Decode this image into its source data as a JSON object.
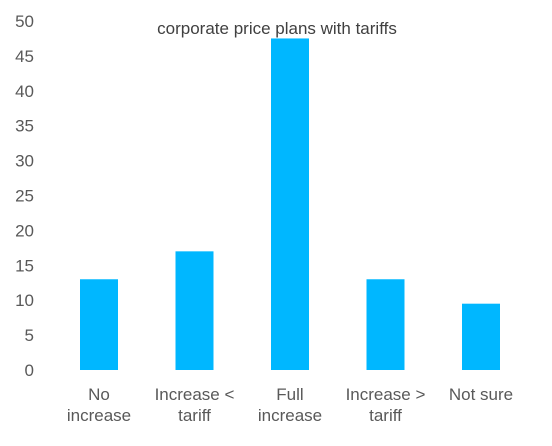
{
  "chart_data": {
    "type": "bar",
    "title": "corporate price plans with tariffs",
    "xlabel": "",
    "ylabel": "",
    "categories": [
      [
        "No",
        "increase"
      ],
      [
        "Increase <",
        "tariff"
      ],
      [
        "Full",
        "increase"
      ],
      [
        "Increase >",
        "tariff"
      ],
      [
        "Not sure"
      ]
    ],
    "values": [
      13,
      17,
      47.5,
      13,
      9.5
    ],
    "ylim": [
      0,
      50
    ],
    "yticks": [
      0,
      5,
      10,
      15,
      20,
      25,
      30,
      35,
      40,
      45,
      50
    ],
    "grid": false,
    "legend": "none",
    "bar_color": "#00B7FF"
  }
}
